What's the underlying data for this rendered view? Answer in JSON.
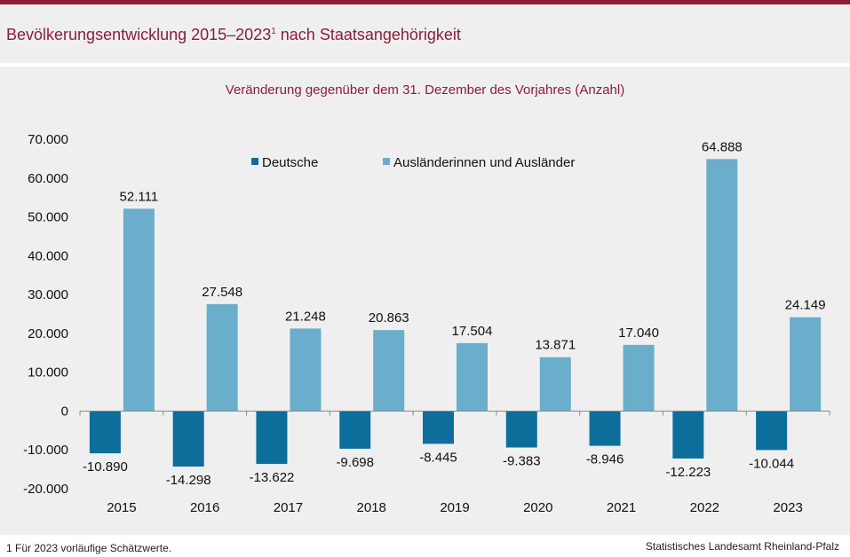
{
  "header": {
    "title": "Bevölkerungsentwicklung 2015–2023",
    "title_sup": "1",
    "title_suffix": " nach Staatsangehörigkeit"
  },
  "chart_data": {
    "type": "bar",
    "title": "Veränderung gegenüber dem 31. Dezember des Vorjahres (Anzahl)",
    "categories": [
      "2015",
      "2016",
      "2017",
      "2018",
      "2019",
      "2020",
      "2021",
      "2022",
      "2023"
    ],
    "series": [
      {
        "name": "Deutsche",
        "color": "#0d6e9c",
        "values": [
          -10890,
          -14298,
          -13622,
          -9698,
          -8445,
          -9383,
          -8946,
          -12223,
          -10044
        ],
        "labels": [
          "-10.890",
          "-14.298",
          "-13.622",
          "-9.698",
          "-8.445",
          "-9.383",
          "-8.946",
          "-12.223",
          "-10.044"
        ]
      },
      {
        "name": "Ausländerinnen und Ausländer",
        "color": "#6aaecb",
        "values": [
          52111,
          27548,
          21248,
          20863,
          17504,
          13871,
          17040,
          64888,
          24149
        ],
        "labels": [
          "52.111",
          "27.548",
          "21.248",
          "20.863",
          "17.504",
          "13.871",
          "17.040",
          "64.888",
          "24.149"
        ]
      }
    ],
    "ylim": [
      -20000,
      70000
    ],
    "yticks": [
      70000,
      60000,
      50000,
      40000,
      30000,
      20000,
      10000,
      0,
      -10000,
      -20000
    ],
    "ytick_labels": [
      "70.000",
      "60.000",
      "50.000",
      "40.000",
      "30.000",
      "20.000",
      "10.000",
      "0",
      "-10.000",
      "-20.000"
    ],
    "legend": "top"
  },
  "footer": {
    "footnote": "1 Für 2023 vorläufige  Schätzwerte.",
    "source": "Statistisches Landesamt  Rheinland-Pfalz"
  }
}
